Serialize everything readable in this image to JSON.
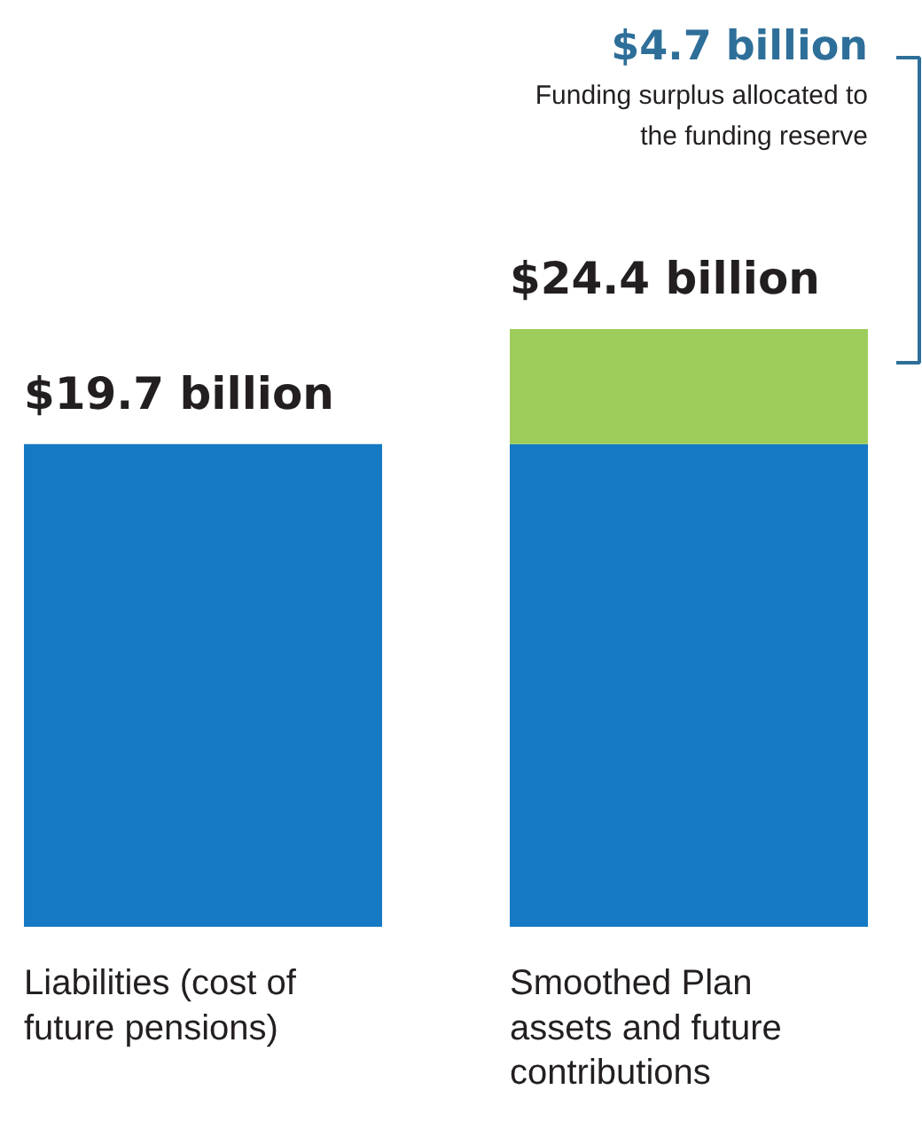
{
  "chart_data": {
    "type": "bar",
    "stacked": true,
    "categories": [
      "Liabilities (cost of\nfuture pensions)",
      "Smoothed Plan\nassets and future\ncontributions"
    ],
    "series": [
      {
        "color": "#1679c4",
        "values": [
          19.7,
          19.7
        ],
        "value_labels": [
          "$19.7 billion",
          null
        ]
      },
      {
        "color": "#9fcd5c",
        "values": [
          null,
          4.7
        ]
      }
    ],
    "totals": [
      null,
      "$24.4 billion"
    ],
    "annotations": [
      "$4.7 billion",
      "Funding surplus allocated to\nthe funding reserve"
    ]
  }
}
